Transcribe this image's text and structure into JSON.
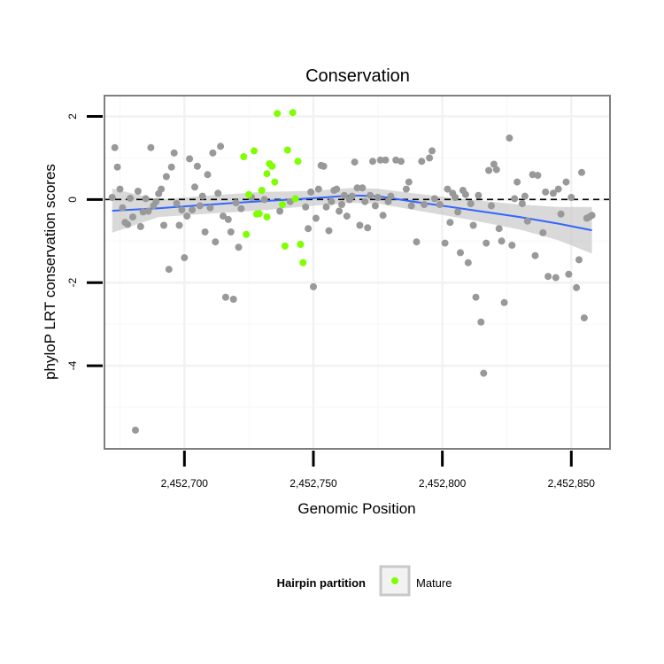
{
  "chart_data": {
    "type": "scatter",
    "title": "Conservation",
    "xlabel": "Genomic Position",
    "ylabel": "phyloP LRT conservation scores",
    "xlim": [
      2452669,
      2452865
    ],
    "ylim": [
      -6.0,
      2.5
    ],
    "x_ticks": [
      2452700,
      2452750,
      2452800,
      2452850
    ],
    "x_tick_labels": [
      "2,452,700",
      "2,452,750",
      "2,452,800",
      "2,452,850"
    ],
    "y_ticks": [
      -4,
      -2,
      0,
      2
    ],
    "y_tick_labels": [
      "-4",
      "-2",
      "0",
      "2"
    ],
    "grid": true,
    "reference_line": {
      "y": 0,
      "style": "dashed"
    },
    "colors": {
      "other_points": "#999999",
      "mature_points": "#7FFF00",
      "smooth_line": "#3366FF",
      "ribbon": "#BFBFBF",
      "panel_border": "#7F7F7F",
      "grid": "#F2F2F2"
    },
    "legend": {
      "position": "bottom",
      "title": "Hairpin partition",
      "entries": [
        "Mature"
      ]
    },
    "series": [
      {
        "name": "Mature",
        "points": [
          [
            2452723,
            1.03
          ],
          [
            2452725,
            0.12
          ],
          [
            2452727,
            1.17
          ],
          [
            2452728,
            -0.35
          ],
          [
            2452730,
            0.22
          ],
          [
            2452732,
            0.62
          ],
          [
            2452733,
            0.86
          ],
          [
            2452734,
            0.8
          ],
          [
            2452735,
            0.42
          ],
          [
            2452736,
            2.07
          ],
          [
            2452738,
            -0.12
          ],
          [
            2452740,
            1.19
          ],
          [
            2452742,
            2.09
          ],
          [
            2452743,
            0.02
          ],
          [
            2452744,
            0.92
          ],
          [
            2452745,
            -1.08
          ],
          [
            2452746,
            -1.52
          ],
          [
            2452739,
            -1.12
          ],
          [
            2452732,
            -0.42
          ],
          [
            2452729,
            -0.34
          ],
          [
            2452724,
            -0.84
          ]
        ]
      },
      {
        "name": "",
        "points": [
          [
            2452672,
            0.05
          ],
          [
            2452673,
            1.25
          ],
          [
            2452674,
            0.78
          ],
          [
            2452675,
            0.25
          ],
          [
            2452676,
            -0.2
          ],
          [
            2452677,
            -0.55
          ],
          [
            2452678,
            -0.6
          ],
          [
            2452679,
            0.03
          ],
          [
            2452680,
            -0.42
          ],
          [
            2452681,
            -5.55
          ],
          [
            2452682,
            0.2
          ],
          [
            2452683,
            -0.65
          ],
          [
            2452684,
            -0.3
          ],
          [
            2452685,
            0.02
          ],
          [
            2452686,
            -0.28
          ],
          [
            2452687,
            1.25
          ],
          [
            2452688,
            -0.15
          ],
          [
            2452689,
            -0.05
          ],
          [
            2452690,
            0.14
          ],
          [
            2452691,
            0.25
          ],
          [
            2452692,
            -0.62
          ],
          [
            2452693,
            0.55
          ],
          [
            2452694,
            -1.68
          ],
          [
            2452695,
            0.78
          ],
          [
            2452696,
            1.12
          ],
          [
            2452697,
            -0.1
          ],
          [
            2452698,
            -0.62
          ],
          [
            2452699,
            -0.25
          ],
          [
            2452700,
            -1.4
          ],
          [
            2452701,
            -0.4
          ],
          [
            2452702,
            0.98
          ],
          [
            2452703,
            -0.25
          ],
          [
            2452704,
            0.3
          ],
          [
            2452705,
            0.8
          ],
          [
            2452706,
            -0.15
          ],
          [
            2452707,
            0.08
          ],
          [
            2452708,
            -0.78
          ],
          [
            2452709,
            0.6
          ],
          [
            2452710,
            -0.2
          ],
          [
            2452711,
            1.12
          ],
          [
            2452712,
            -1.02
          ],
          [
            2452713,
            0.15
          ],
          [
            2452714,
            1.28
          ],
          [
            2452715,
            -0.4
          ],
          [
            2452716,
            -2.35
          ],
          [
            2452717,
            -0.48
          ],
          [
            2452718,
            -0.78
          ],
          [
            2452719,
            -2.4
          ],
          [
            2452720,
            -0.08
          ],
          [
            2452721,
            -1.15
          ],
          [
            2452722,
            -0.22
          ],
          [
            2452726,
            0.05
          ],
          [
            2452731,
            0.0
          ],
          [
            2452737,
            -0.28
          ],
          [
            2452741,
            -0.05
          ],
          [
            2452747,
            -0.18
          ],
          [
            2452748,
            -0.7
          ],
          [
            2452749,
            0.18
          ],
          [
            2452750,
            -2.1
          ],
          [
            2452751,
            -0.45
          ],
          [
            2452752,
            0.25
          ],
          [
            2452753,
            0.82
          ],
          [
            2452754,
            0.8
          ],
          [
            2452755,
            -0.18
          ],
          [
            2452756,
            -0.75
          ],
          [
            2452757,
            -0.05
          ],
          [
            2452758,
            0.22
          ],
          [
            2452759,
            0.25
          ],
          [
            2452760,
            -0.28
          ],
          [
            2452761,
            -0.12
          ],
          [
            2452762,
            0.1
          ],
          [
            2452763,
            -0.4
          ],
          [
            2452764,
            0.0
          ],
          [
            2452765,
            0.08
          ],
          [
            2452766,
            0.9
          ],
          [
            2452767,
            0.28
          ],
          [
            2452768,
            -0.62
          ],
          [
            2452769,
            0.28
          ],
          [
            2452770,
            -0.05
          ],
          [
            2452771,
            -0.68
          ],
          [
            2452772,
            0.1
          ],
          [
            2452773,
            0.92
          ],
          [
            2452774,
            -0.15
          ],
          [
            2452775,
            0.05
          ],
          [
            2452776,
            0.95
          ],
          [
            2452777,
            -0.38
          ],
          [
            2452778,
            0.95
          ],
          [
            2452779,
            -0.05
          ],
          [
            2452780,
            0.08
          ],
          [
            2452782,
            0.95
          ],
          [
            2452784,
            0.92
          ],
          [
            2452786,
            0.25
          ],
          [
            2452787,
            0.42
          ],
          [
            2452788,
            -0.15
          ],
          [
            2452790,
            -1.02
          ],
          [
            2452792,
            0.92
          ],
          [
            2452793,
            -0.12
          ],
          [
            2452795,
            1.0
          ],
          [
            2452796,
            1.17
          ],
          [
            2452797,
            0.02
          ],
          [
            2452799,
            -0.12
          ],
          [
            2452801,
            -1.05
          ],
          [
            2452802,
            0.25
          ],
          [
            2452803,
            -0.55
          ],
          [
            2452804,
            0.15
          ],
          [
            2452805,
            0.05
          ],
          [
            2452806,
            -0.3
          ],
          [
            2452807,
            -1.28
          ],
          [
            2452808,
            0.22
          ],
          [
            2452809,
            0.12
          ],
          [
            2452810,
            -1.52
          ],
          [
            2452811,
            -0.1
          ],
          [
            2452812,
            -0.62
          ],
          [
            2452813,
            -2.35
          ],
          [
            2452814,
            0.1
          ],
          [
            2452815,
            -2.95
          ],
          [
            2452816,
            -4.18
          ],
          [
            2452817,
            -1.05
          ],
          [
            2452818,
            0.7
          ],
          [
            2452819,
            -0.15
          ],
          [
            2452820,
            0.85
          ],
          [
            2452821,
            0.72
          ],
          [
            2452822,
            -0.7
          ],
          [
            2452823,
            -1.0
          ],
          [
            2452824,
            -2.48
          ],
          [
            2452826,
            1.48
          ],
          [
            2452827,
            -1.1
          ],
          [
            2452828,
            0.02
          ],
          [
            2452829,
            0.42
          ],
          [
            2452831,
            -0.1
          ],
          [
            2452832,
            0.08
          ],
          [
            2452833,
            -0.52
          ],
          [
            2452835,
            0.6
          ],
          [
            2452836,
            -1.35
          ],
          [
            2452837,
            0.58
          ],
          [
            2452839,
            -0.8
          ],
          [
            2452840,
            0.18
          ],
          [
            2452841,
            -1.85
          ],
          [
            2452843,
            0.15
          ],
          [
            2452844,
            -1.88
          ],
          [
            2452845,
            0.25
          ],
          [
            2452846,
            -0.35
          ],
          [
            2452848,
            0.42
          ],
          [
            2452849,
            -1.8
          ],
          [
            2452850,
            0.05
          ],
          [
            2452852,
            -2.12
          ],
          [
            2452853,
            -1.45
          ],
          [
            2452854,
            0.65
          ],
          [
            2452855,
            -2.85
          ],
          [
            2452856,
            -0.45
          ],
          [
            2452857,
            -0.42
          ],
          [
            2452858,
            -0.38
          ]
        ]
      }
    ],
    "smooth": {
      "x": [
        2452672,
        2452690,
        2452710,
        2452730,
        2452750,
        2452765,
        2452775,
        2452790,
        2452810,
        2452830,
        2452845,
        2452858
      ],
      "y": [
        -0.27,
        -0.21,
        -0.12,
        -0.04,
        0.03,
        0.1,
        0.08,
        -0.06,
        -0.24,
        -0.42,
        -0.58,
        -0.74
      ],
      "lower": [
        -0.8,
        -0.42,
        -0.34,
        -0.26,
        -0.15,
        -0.08,
        -0.1,
        -0.26,
        -0.48,
        -0.72,
        -0.98,
        -1.3
      ],
      "upper": [
        0.26,
        0.0,
        0.1,
        0.18,
        0.21,
        0.28,
        0.26,
        0.14,
        0.0,
        -0.12,
        -0.18,
        -0.18
      ]
    }
  }
}
